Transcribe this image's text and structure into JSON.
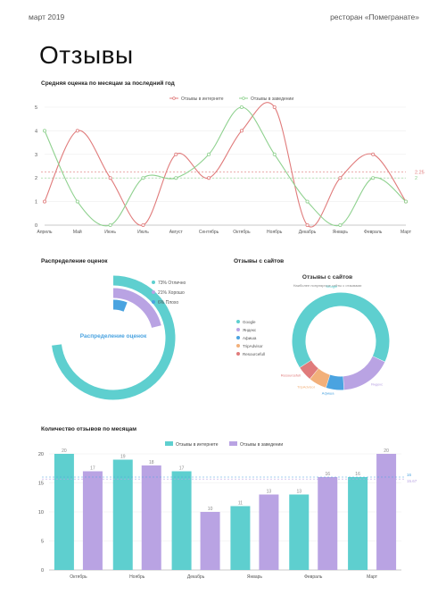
{
  "header": {
    "date": "март 2019",
    "restaurant": "ресторан «Помегранате»"
  },
  "page_title": "Отзывы",
  "chart_data": [
    {
      "id": "line",
      "type": "line",
      "title": "Средняя оценка по месяцам за последний год",
      "categories": [
        "Апрель",
        "Май",
        "Июнь",
        "Июль",
        "Август",
        "Сентябрь",
        "Октябрь",
        "Ноябрь",
        "Декабрь",
        "Январь",
        "Февраль",
        "Март"
      ],
      "ylim": [
        0,
        5
      ],
      "yticks": [
        0,
        1,
        2,
        3,
        4,
        5
      ],
      "series": [
        {
          "name": "Отзывы в интернете",
          "color": "#e07b7b",
          "values": [
            1,
            4,
            2,
            0,
            3,
            2,
            4,
            5,
            0,
            2,
            3,
            1
          ]
        },
        {
          "name": "Отзывы в заведении",
          "color": "#8fd18f",
          "values": [
            4,
            1,
            0,
            2,
            2,
            3,
            5,
            3,
            1,
            0,
            2,
            1
          ]
        }
      ],
      "reference_lines": [
        {
          "value": 2.25,
          "label": "2.25",
          "color": "#e07b7b"
        },
        {
          "value": 2,
          "label": "2",
          "color": "#8fd18f"
        }
      ],
      "legend": "top-center"
    },
    {
      "id": "radial",
      "type": "pie",
      "title": "Распределение оценок",
      "center_label": "Распределение оценок",
      "slices": [
        {
          "label": "73% Отлично",
          "value": 73,
          "color": "#5ecfcf"
        },
        {
          "label": "21% Хорошо",
          "value": 21,
          "color": "#b9a3e3"
        },
        {
          "label": "6% Плохо",
          "value": 6,
          "color": "#4aa3e0"
        }
      ],
      "legend": "top-right"
    },
    {
      "id": "donut",
      "type": "pie",
      "title": "Отзывы с сайтов",
      "inner_title": "Отзывы с сайтов",
      "inner_subtitle": "Наиболее популярные сайты с отзывами",
      "slices": [
        {
          "label": "Google",
          "value": 66,
          "color": "#5ecfcf"
        },
        {
          "label": "Яндекс",
          "value": 17,
          "color": "#b9a3e3"
        },
        {
          "label": "Афиша",
          "value": 6,
          "color": "#4aa3e0"
        },
        {
          "label": "TripAdvisor",
          "value": 6,
          "color": "#f2b07a"
        },
        {
          "label": "Resourcefull",
          "value": 5,
          "color": "#e07b7b"
        }
      ],
      "legend_labels": [
        "Google",
        "Яндекс",
        "Афиша",
        "TripAdvisor",
        "Resourcefull"
      ],
      "legend": "left"
    },
    {
      "id": "bars",
      "type": "bar",
      "title": "Количество отзывов по месяцам",
      "categories": [
        "Октябрь",
        "Ноябрь",
        "Декабрь",
        "Январь",
        "Февраль",
        "Март"
      ],
      "ylim": [
        0,
        20
      ],
      "yticks": [
        0,
        5,
        10,
        15,
        20
      ],
      "series": [
        {
          "name": "Отзывы в интернете",
          "color": "#5ecfcf",
          "values": [
            20,
            19,
            17,
            11,
            13,
            16
          ]
        },
        {
          "name": "Отзывы в заведении",
          "color": "#b9a3e3",
          "values": [
            17,
            18,
            10,
            13,
            16,
            20
          ]
        }
      ],
      "reference_lines": [
        {
          "value": 16,
          "label": "16",
          "color": "#4aa3e0"
        },
        {
          "value": 15.67,
          "label": "15.67",
          "color": "#b9a3e3"
        }
      ],
      "legend": "top-center"
    }
  ]
}
